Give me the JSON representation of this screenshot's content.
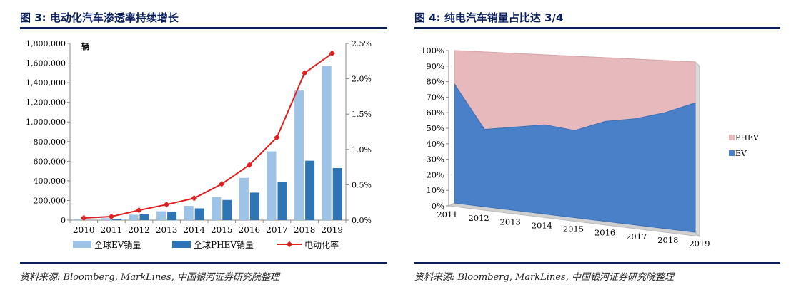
{
  "left_panel": {
    "title": "图 3: 电动化汽车渗透率持续增长",
    "source": "资料来源: Bloomberg, MarkLines, 中国银河证券研究院整理"
  },
  "right_panel": {
    "title": "图 4: 纯电汽车销量占比达 3/4",
    "source": "资料来源: Bloomberg, MarkLines, 中国银河证券研究院整理"
  },
  "colors": {
    "ev_bar": "#9dc3e6",
    "phev_bar": "#2e75b6",
    "rate_line": "#e02020",
    "ev_area": "#4a80c8",
    "phev_area": "#e6b9bc",
    "title_navy": "#0b1f5c"
  },
  "chart_data": [
    {
      "type": "bar",
      "combo": "bar+line",
      "categories": [
        "2010",
        "2011",
        "2012",
        "2013",
        "2014",
        "2015",
        "2016",
        "2017",
        "2018",
        "2019"
      ],
      "unit_label": "辆",
      "ylim": [
        0,
        1800000
      ],
      "y_ticks": [
        "0",
        "200,000",
        "400,000",
        "600,000",
        "800,000",
        "1,000,000",
        "1,200,000",
        "1,400,000",
        "1,600,000",
        "1,800,000"
      ],
      "y2lim": [
        0,
        2.5
      ],
      "y2_ticks": [
        "0.0%",
        "0.5%",
        "1.0%",
        "1.5%",
        "2.0%",
        "2.5%"
      ],
      "series": [
        {
          "name": "全球EV销量",
          "type": "bar",
          "axis": "left",
          "values": [
            8000,
            20000,
            55000,
            90000,
            145000,
            235000,
            430000,
            700000,
            1320000,
            1570000
          ]
        },
        {
          "name": "全球PHEV销量",
          "type": "bar",
          "axis": "left",
          "values": [
            1000,
            8000,
            60000,
            85000,
            120000,
            205000,
            280000,
            385000,
            605000,
            530000
          ]
        },
        {
          "name": "电动化率",
          "type": "line",
          "axis": "right",
          "values": [
            0.03,
            0.05,
            0.14,
            0.22,
            0.31,
            0.51,
            0.78,
            1.17,
            2.08,
            2.36
          ]
        }
      ],
      "legend": "bottom",
      "grid": false
    },
    {
      "type": "area",
      "stacked": "percent",
      "view": "3d",
      "categories": [
        "2011",
        "2012",
        "2013",
        "2014",
        "2015",
        "2016",
        "2017",
        "2018",
        "2019"
      ],
      "ylim": [
        0,
        100
      ],
      "y_ticks": [
        "0%",
        "10%",
        "20%",
        "30%",
        "40%",
        "50%",
        "60%",
        "70%",
        "80%",
        "90%",
        "100%"
      ],
      "series": [
        {
          "name": "EV",
          "values": [
            78,
            50,
            53,
            56,
            54,
            61,
            64,
            69,
            76
          ]
        },
        {
          "name": "PHEV",
          "values": [
            22,
            50,
            47,
            44,
            46,
            39,
            36,
            31,
            24
          ]
        }
      ],
      "legend": "right",
      "grid": false
    }
  ]
}
